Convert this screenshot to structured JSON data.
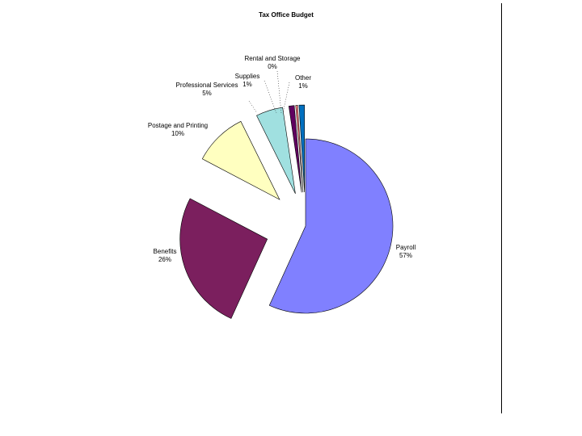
{
  "chart_data": {
    "type": "pie",
    "title": "Tax Office Budget",
    "slices": [
      {
        "name": "Payroll",
        "value": 57,
        "label": "57%",
        "color": "#8080ff"
      },
      {
        "name": "Benefits",
        "value": 26,
        "label": "26%",
        "color": "#7b1f5e"
      },
      {
        "name": "Postage and Printing",
        "value": 10,
        "label": "10%",
        "color": "#ffffc0"
      },
      {
        "name": "Professional Services",
        "value": 5,
        "label": "5%",
        "color": "#a0e0e0"
      },
      {
        "name": "Supplies",
        "value": 1,
        "label": "1%",
        "color": "#600060"
      },
      {
        "name": "Rental and Storage",
        "value": 0,
        "label": "0%",
        "color": "#ff8080"
      },
      {
        "name": "Other",
        "value": 1,
        "label": "1%",
        "color": "#0070c0"
      }
    ]
  }
}
